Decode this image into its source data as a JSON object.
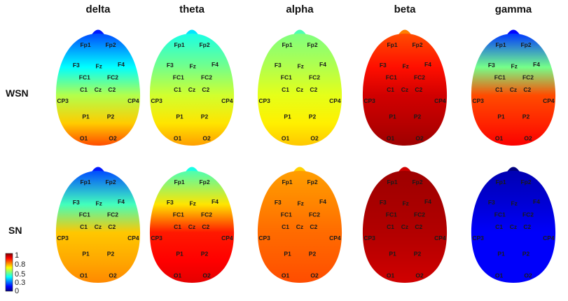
{
  "bands": [
    "delta",
    "theta",
    "alpha",
    "beta",
    "gamma"
  ],
  "conditions": [
    "WSN",
    "SN"
  ],
  "electrodes": [
    {
      "name": "Fp1",
      "nx": -0.3,
      "ny": -0.8
    },
    {
      "name": "Fp2",
      "nx": 0.3,
      "ny": -0.8
    },
    {
      "name": "F3",
      "nx": -0.52,
      "ny": -0.44
    },
    {
      "name": "Fz",
      "nx": 0.02,
      "ny": -0.42
    },
    {
      "name": "F4",
      "nx": 0.55,
      "ny": -0.45
    },
    {
      "name": "FC1",
      "nx": -0.32,
      "ny": -0.22
    },
    {
      "name": "FC2",
      "nx": 0.35,
      "ny": -0.22
    },
    {
      "name": "C1",
      "nx": -0.34,
      "ny": 0.0
    },
    {
      "name": "Cz",
      "nx": 0.0,
      "ny": 0.0
    },
    {
      "name": "C2",
      "nx": 0.33,
      "ny": 0.0
    },
    {
      "name": "CP3",
      "nx": -0.84,
      "ny": 0.2
    },
    {
      "name": "CP4",
      "nx": 0.84,
      "ny": 0.2
    },
    {
      "name": "P1",
      "nx": -0.29,
      "ny": 0.48
    },
    {
      "name": "P2",
      "nx": 0.3,
      "ny": 0.48
    },
    {
      "name": "O1",
      "nx": -0.34,
      "ny": 0.87
    },
    {
      "name": "O2",
      "nx": 0.35,
      "ny": 0.87
    }
  ],
  "maps": {
    "WSN": {
      "delta": {
        "front": 0.2,
        "center": 0.55,
        "back": 0.8
      },
      "theta": {
        "front": 0.4,
        "center": 0.58,
        "back": 0.72
      },
      "alpha": {
        "front": 0.5,
        "center": 0.6,
        "back": 0.68
      },
      "beta": {
        "front": 0.8,
        "center": 0.92,
        "back": 0.97
      },
      "gamma": {
        "front": 0.18,
        "center": 0.8,
        "back": 0.88
      }
    },
    "SN": {
      "delta": {
        "front": 0.2,
        "center": 0.68,
        "back": 0.74
      },
      "theta": {
        "front": 0.45,
        "center": 0.85,
        "back": 0.9
      },
      "alpha": {
        "front": 0.72,
        "center": 0.77,
        "back": 0.8
      },
      "beta": {
        "front": 0.97,
        "center": 0.95,
        "back": 0.92
      },
      "gamma": {
        "front": 0.05,
        "center": 0.12,
        "back": 0.12
      }
    }
  },
  "colorbar": {
    "ticks": [
      "1",
      "0.8",
      "0.5",
      "0.3",
      "0"
    ],
    "tick_values": [
      1,
      0.8,
      0.5,
      0.3,
      0
    ],
    "colors": [
      "#00007f",
      "#0000ff",
      "#007fff",
      "#00ffff",
      "#7fff7f",
      "#ffff00",
      "#ff7f00",
      "#ff0000",
      "#7f0000"
    ]
  }
}
